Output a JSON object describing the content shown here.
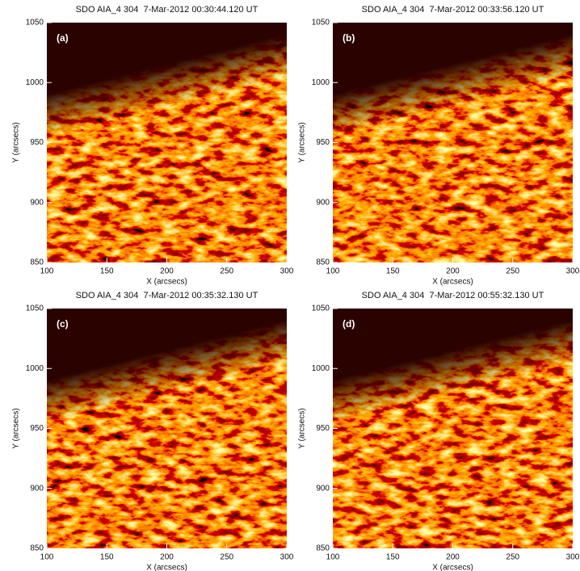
{
  "panels": [
    {
      "title": "SDO AIA_4 304  7-Mar-2012 00:30:44.120 UT",
      "label": "(a)",
      "xlim": [
        100,
        300
      ],
      "ylim": [
        850,
        1050
      ],
      "xticks": [
        100,
        150,
        200,
        250,
        300
      ],
      "yticks": [
        850,
        900,
        950,
        1000,
        1050
      ],
      "xlabel": "X (arcsecs)",
      "ylabel": "Y (arcsecs)"
    },
    {
      "title": "SDO AIA_4 304  7-Mar-2012 00:33:56.120 UT",
      "label": "(b)",
      "xlim": [
        100,
        300
      ],
      "ylim": [
        850,
        1050
      ],
      "xticks": [
        100,
        150,
        200,
        250,
        300
      ],
      "yticks": [
        850,
        900,
        950,
        1000,
        1050
      ],
      "xlabel": "X (arcsecs)",
      "ylabel": "Y (arcsecs)"
    },
    {
      "title": "SDO AIA_4 304  7-Mar-2012 00:35:32.130 UT",
      "label": "(c)",
      "xlim": [
        100,
        300
      ],
      "ylim": [
        850,
        1050
      ],
      "xticks": [
        100,
        150,
        200,
        250,
        300
      ],
      "yticks": [
        850,
        900,
        950,
        1000,
        1050
      ],
      "xlabel": "X (arcsecs)",
      "ylabel": "Y (arcsecs)"
    },
    {
      "title": "SDO AIA_4 304  7-Mar-2012 00:55:32.130 UT",
      "label": "(d)",
      "xlim": [
        100,
        300
      ],
      "ylim": [
        850,
        1050
      ],
      "xticks": [
        100,
        150,
        200,
        250,
        300
      ],
      "yticks": [
        850,
        900,
        950,
        1000,
        1050
      ],
      "xlabel": "X (arcsecs)",
      "ylabel": "Y (arcsecs)"
    }
  ]
}
